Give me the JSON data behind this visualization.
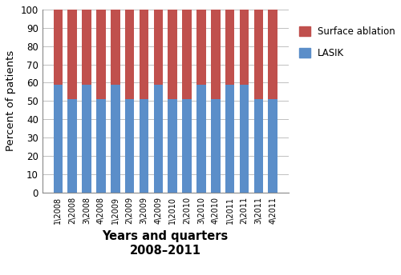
{
  "categories": [
    "1\\2008",
    "2\\2008",
    "3\\2008",
    "4\\2008",
    "1\\2009",
    "2\\2009",
    "3\\2009",
    "4\\2009",
    "1\\2010",
    "2\\2010",
    "3\\2010",
    "4\\2010",
    "1\\2011",
    "2\\2011",
    "3\\2011",
    "4\\2011"
  ],
  "lasik_values": [
    59,
    51,
    59,
    51,
    59,
    51,
    51,
    59,
    51,
    51,
    59,
    51,
    59,
    59,
    51,
    51
  ],
  "surface_values": [
    41,
    49,
    41,
    49,
    41,
    49,
    49,
    41,
    49,
    49,
    41,
    49,
    41,
    41,
    49,
    49
  ],
  "lasik_color": "#5b8ec9",
  "surface_color": "#c0504d",
  "title_line1": "Years and quarters",
  "title_line2": "2008–2011",
  "ylabel": "Percent of patients",
  "ylim": [
    0,
    100
  ],
  "yticks": [
    0,
    10,
    20,
    30,
    40,
    50,
    60,
    70,
    80,
    90,
    100
  ],
  "legend_surface": "Surface ablation",
  "legend_lasik": "LASIK",
  "bar_width": 0.65,
  "background_color": "#ffffff",
  "grid_color": "#c0c0c0"
}
